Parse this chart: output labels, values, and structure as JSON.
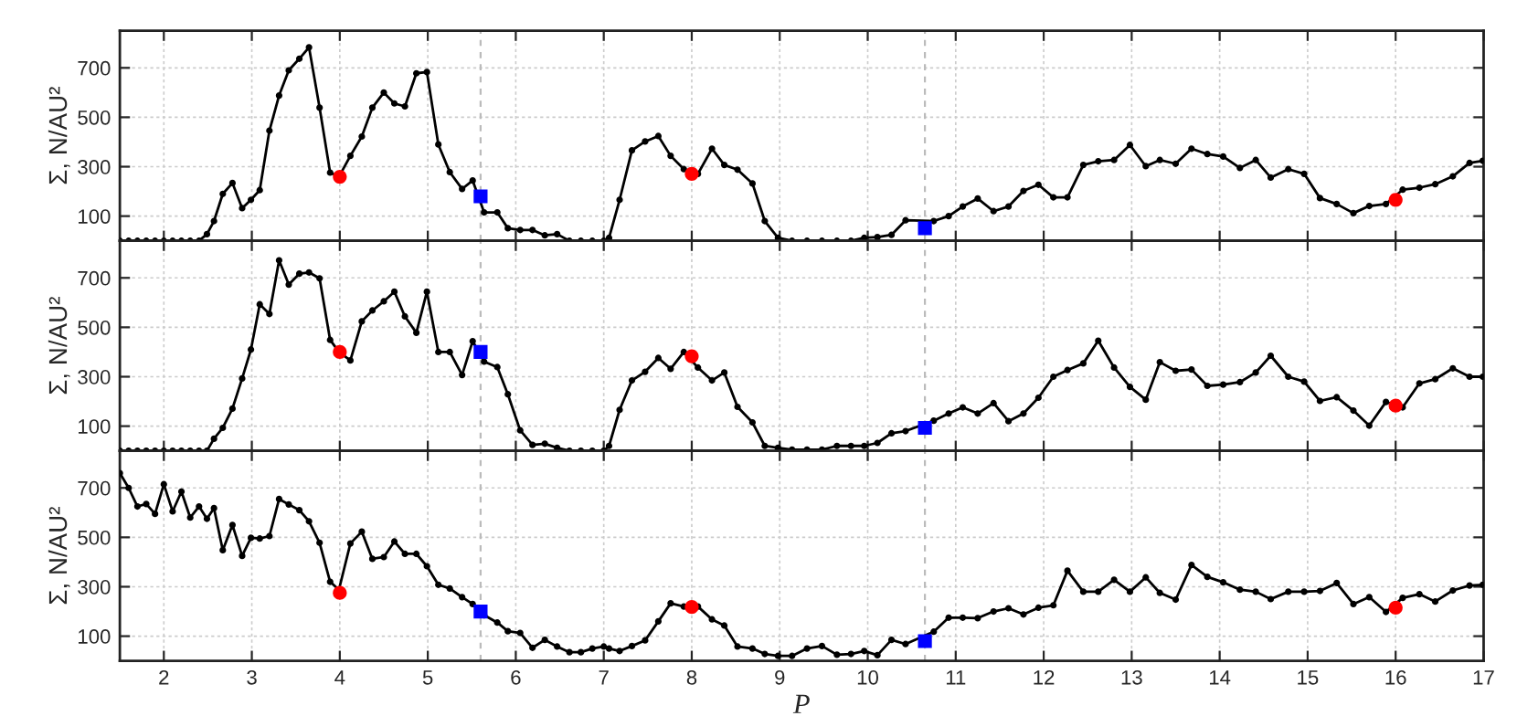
{
  "chart_data": [
    {
      "type": "line",
      "ylabel": "Σ, N/AU²",
      "xlim": [
        1.5,
        17
      ],
      "xticks": [
        2,
        3,
        4,
        5,
        6,
        7,
        8,
        9,
        10,
        11,
        12,
        13,
        14,
        15,
        16,
        17
      ],
      "ylim": [
        0,
        850
      ],
      "yticks": [
        100,
        300,
        500,
        700
      ],
      "grid": true,
      "tick_labels": "y",
      "x": [
        1.5,
        1.6,
        1.7,
        1.8,
        1.9,
        2.0,
        2.1,
        2.2,
        2.3,
        2.4,
        2.49,
        2.57,
        2.67,
        2.78,
        2.89,
        2.99,
        3.09,
        3.2,
        3.31,
        3.42,
        3.54,
        3.65,
        3.77,
        3.89,
        3.99,
        4.12,
        4.25,
        4.37,
        4.5,
        4.62,
        4.74,
        4.87,
        4.99,
        5.12,
        5.25,
        5.39,
        5.51,
        5.64,
        5.79,
        5.91,
        6.05,
        6.19,
        6.33,
        6.47,
        6.61,
        6.74,
        6.87,
        7.0,
        7.06,
        7.18,
        7.32,
        7.47,
        7.62,
        7.76,
        7.91,
        8.07,
        8.23,
        8.37,
        8.52,
        8.69,
        8.83,
        8.98,
        9.14,
        9.31,
        9.48,
        9.65,
        9.81,
        9.96,
        10.11,
        10.27,
        10.43,
        10.75,
        10.92,
        11.08,
        11.25,
        11.43,
        11.6,
        11.77,
        11.94,
        12.11,
        12.27,
        12.45,
        12.62,
        12.8,
        12.98,
        13.16,
        13.32,
        13.5,
        13.68,
        13.86,
        14.04,
        14.23,
        14.41,
        14.58,
        14.78,
        14.96,
        15.14,
        15.33,
        15.52,
        15.7,
        15.89,
        16.08,
        16.27,
        16.45,
        16.65,
        16.84,
        16.99
      ],
      "series": [
        {
          "color": "#000000",
          "marker": "circle",
          "values": [
            0,
            0,
            0,
            0,
            0,
            0,
            0,
            0,
            0,
            0,
            27,
            80,
            190,
            234,
            132,
            166,
            205,
            446,
            588,
            690,
            737,
            783,
            539,
            276,
            259,
            344,
            422,
            539,
            600,
            556,
            544,
            678,
            683,
            390,
            278,
            210,
            244,
            115,
            115,
            51,
            44,
            44,
            22,
            27,
            0,
            0,
            0,
            0,
            12,
            166,
            366,
            402,
            424,
            344,
            290,
            271,
            373,
            307,
            288,
            232,
            80,
            12,
            0,
            0,
            0,
            0,
            0,
            12,
            15,
            24,
            83,
            80,
            100,
            139,
            171,
            120,
            139,
            202,
            227,
            176,
            176,
            307,
            322,
            327,
            388,
            302,
            327,
            312,
            373,
            351,
            341,
            295,
            327,
            256,
            290,
            271,
            173,
            149,
            112,
            141,
            149,
            207,
            215,
            229,
            261,
            315,
            324
          ]
        },
        {
          "type": "scatter",
          "color": "#ff0000",
          "marker": "circle",
          "x": [
            4,
            8,
            16
          ],
          "values": [
            259,
            271,
            166
          ]
        },
        {
          "type": "scatter",
          "color": "#0000ff",
          "marker": "square",
          "x": [
            5.6,
            10.65
          ],
          "values": [
            180,
            51
          ]
        }
      ],
      "ref_lines": [
        {
          "axis": "x",
          "value": 5.6,
          "color": "#bbbbbb",
          "line_style": "dashed"
        },
        {
          "axis": "x",
          "value": 10.65,
          "color": "#bbbbbb",
          "line_style": "dashed"
        }
      ]
    },
    {
      "type": "line",
      "ylabel": "Σ, N/AU²",
      "xlim": [
        1.5,
        17
      ],
      "xticks": [
        2,
        3,
        4,
        5,
        6,
        7,
        8,
        9,
        10,
        11,
        12,
        13,
        14,
        15,
        16,
        17
      ],
      "ylim": [
        0,
        850
      ],
      "yticks": [
        100,
        300,
        500,
        700
      ],
      "grid": true,
      "tick_labels": "y",
      "x": [
        1.5,
        1.6,
        1.7,
        1.8,
        1.9,
        2.0,
        2.1,
        2.2,
        2.3,
        2.4,
        2.49,
        2.57,
        2.67,
        2.78,
        2.89,
        2.99,
        3.09,
        3.2,
        3.31,
        3.42,
        3.54,
        3.65,
        3.77,
        3.89,
        3.99,
        4.12,
        4.25,
        4.37,
        4.5,
        4.62,
        4.74,
        4.87,
        4.99,
        5.12,
        5.25,
        5.39,
        5.51,
        5.64,
        5.79,
        5.91,
        6.05,
        6.19,
        6.33,
        6.47,
        6.61,
        6.74,
        6.87,
        7.0,
        7.06,
        7.18,
        7.32,
        7.47,
        7.62,
        7.76,
        7.91,
        8.07,
        8.23,
        8.37,
        8.52,
        8.69,
        8.83,
        8.98,
        9.14,
        9.31,
        9.48,
        9.65,
        9.81,
        9.96,
        10.11,
        10.27,
        10.43,
        10.75,
        10.92,
        11.08,
        11.25,
        11.43,
        11.6,
        11.77,
        11.94,
        12.11,
        12.27,
        12.45,
        12.62,
        12.8,
        12.98,
        13.16,
        13.32,
        13.5,
        13.68,
        13.86,
        14.04,
        14.23,
        14.41,
        14.58,
        14.78,
        14.96,
        15.14,
        15.33,
        15.52,
        15.7,
        15.89,
        16.08,
        16.27,
        16.45,
        16.65,
        16.84,
        16.99
      ],
      "series": [
        {
          "color": "#000000",
          "marker": "circle",
          "values": [
            0,
            0,
            0,
            0,
            0,
            0,
            0,
            0,
            0,
            0,
            0,
            49,
            93,
            171,
            293,
            410,
            593,
            554,
            771,
            673,
            717,
            722,
            698,
            449,
            400,
            366,
            524,
            568,
            605,
            644,
            544,
            478,
            644,
            400,
            400,
            307,
            444,
            361,
            339,
            229,
            83,
            24,
            29,
            12,
            0,
            0,
            0,
            0,
            20,
            166,
            285,
            320,
            376,
            332,
            400,
            337,
            285,
            317,
            178,
            115,
            20,
            12,
            5,
            5,
            5,
            20,
            20,
            20,
            32,
            71,
            80,
            122,
            151,
            176,
            151,
            193,
            120,
            151,
            215,
            300,
            327,
            354,
            446,
            337,
            259,
            207,
            359,
            324,
            329,
            263,
            268,
            278,
            317,
            385,
            300,
            280,
            202,
            217,
            163,
            102,
            198,
            176,
            273,
            290,
            334,
            300,
            300
          ]
        },
        {
          "type": "scatter",
          "color": "#ff0000",
          "marker": "circle",
          "x": [
            4,
            8,
            16
          ],
          "values": [
            400,
            383,
            183
          ]
        },
        {
          "type": "scatter",
          "color": "#0000ff",
          "marker": "square",
          "x": [
            5.6,
            10.65
          ],
          "values": [
            400,
            93
          ]
        }
      ],
      "ref_lines": [
        {
          "axis": "x",
          "value": 5.6,
          "color": "#bbbbbb",
          "line_style": "dashed"
        },
        {
          "axis": "x",
          "value": 10.65,
          "color": "#bbbbbb",
          "line_style": "dashed"
        }
      ]
    },
    {
      "type": "line",
      "xlabel": "P",
      "ylabel": "Σ, N/AU²",
      "xlim": [
        1.5,
        17
      ],
      "xticks": [
        2,
        3,
        4,
        5,
        6,
        7,
        8,
        9,
        10,
        11,
        12,
        13,
        14,
        15,
        16,
        17
      ],
      "ylim": [
        0,
        850
      ],
      "yticks": [
        100,
        300,
        500,
        700
      ],
      "grid": true,
      "x": [
        1.5,
        1.6,
        1.7,
        1.8,
        1.9,
        2.0,
        2.1,
        2.2,
        2.3,
        2.4,
        2.49,
        2.57,
        2.67,
        2.78,
        2.89,
        2.99,
        3.09,
        3.2,
        3.31,
        3.42,
        3.54,
        3.65,
        3.77,
        3.89,
        3.99,
        4.12,
        4.25,
        4.37,
        4.5,
        4.62,
        4.74,
        4.87,
        4.99,
        5.12,
        5.25,
        5.39,
        5.51,
        5.64,
        5.79,
        5.91,
        6.05,
        6.19,
        6.33,
        6.47,
        6.61,
        6.74,
        6.87,
        7.0,
        7.06,
        7.18,
        7.32,
        7.47,
        7.62,
        7.76,
        7.91,
        8.07,
        8.23,
        8.37,
        8.52,
        8.69,
        8.83,
        8.98,
        9.14,
        9.31,
        9.48,
        9.65,
        9.81,
        9.96,
        10.11,
        10.27,
        10.43,
        10.75,
        10.92,
        11.08,
        11.25,
        11.43,
        11.6,
        11.77,
        11.94,
        12.11,
        12.27,
        12.45,
        12.62,
        12.8,
        12.98,
        13.16,
        13.32,
        13.5,
        13.68,
        13.86,
        14.04,
        14.23,
        14.41,
        14.58,
        14.78,
        14.96,
        15.14,
        15.33,
        15.52,
        15.7,
        15.89,
        16.08,
        16.27,
        16.45,
        16.65,
        16.84,
        16.99
      ],
      "series": [
        {
          "color": "#000000",
          "marker": "circle",
          "values": [
            760,
            700,
            625,
            635,
            595,
            715,
            605,
            685,
            580,
            625,
            575,
            618,
            448,
            550,
            425,
            498,
            495,
            505,
            655,
            633,
            610,
            565,
            478,
            320,
            288,
            475,
            523,
            413,
            420,
            483,
            433,
            433,
            383,
            308,
            293,
            258,
            230,
            185,
            155,
            120,
            113,
            53,
            85,
            58,
            35,
            35,
            50,
            58,
            50,
            40,
            60,
            83,
            160,
            233,
            220,
            220,
            168,
            143,
            58,
            50,
            28,
            20,
            20,
            50,
            60,
            25,
            28,
            40,
            23,
            85,
            68,
            118,
            175,
            175,
            173,
            200,
            213,
            188,
            215,
            225,
            365,
            280,
            280,
            328,
            280,
            338,
            275,
            248,
            388,
            340,
            318,
            288,
            280,
            250,
            280,
            280,
            283,
            315,
            230,
            258,
            198,
            255,
            270,
            240,
            285,
            305,
            308
          ]
        },
        {
          "type": "scatter",
          "color": "#ff0000",
          "marker": "circle",
          "x": [
            4,
            8,
            16
          ],
          "values": [
            275,
            218,
            215
          ]
        },
        {
          "type": "scatter",
          "color": "#0000ff",
          "marker": "square",
          "x": [
            5.6,
            10.65
          ],
          "values": [
            200,
            80
          ]
        }
      ],
      "ref_lines": [
        {
          "axis": "x",
          "value": 5.6,
          "color": "#bbbbbb",
          "line_style": "dashed"
        },
        {
          "axis": "x",
          "value": 10.65,
          "color": "#bbbbbb",
          "line_style": "dashed"
        }
      ]
    }
  ]
}
